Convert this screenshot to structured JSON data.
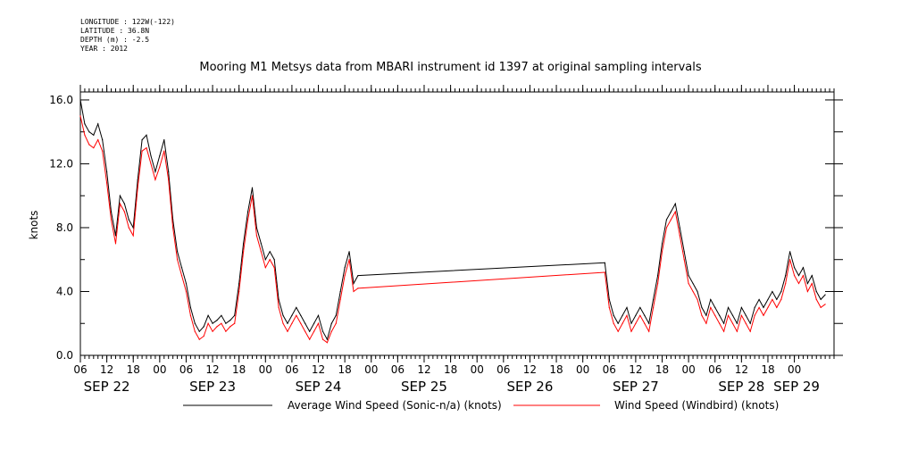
{
  "header": {
    "longitude": "LONGITUDE : 122W(-122)",
    "latitude": "LATITUDE : 36.8N",
    "depth": "DEPTH (m) : -2.5",
    "year": "YEAR : 2012"
  },
  "chart_data": {
    "type": "line",
    "title": "Mooring M1 Metsys data from MBARI instrument id 1397 at original sampling intervals",
    "ylabel": "knots",
    "xlabel": "",
    "ylim": [
      0,
      16.5
    ],
    "y_ticks": [
      "0.0",
      "4.0",
      "8.0",
      "12.0",
      "16.0"
    ],
    "x_range_hours": [
      0,
      171
    ],
    "x_hour_ticks": [
      "06",
      "12",
      "18",
      "00",
      "06",
      "12",
      "18",
      "00",
      "06",
      "12",
      "18",
      "00",
      "06",
      "12",
      "18",
      "00",
      "06",
      "12",
      "18",
      "00",
      "06",
      "12",
      "18",
      "00",
      "06",
      "12",
      "18",
      "00"
    ],
    "date_labels": [
      "SEP 22",
      "SEP 23",
      "SEP 24",
      "SEP 25",
      "SEP 26",
      "SEP 27",
      "SEP 28",
      "SEP 29"
    ],
    "grid": false,
    "legend_position": "bottom",
    "series": [
      {
        "name": "Average Wind Speed (Sonic-n/a) (knots)",
        "color": "#000000",
        "x": [
          0,
          1,
          2,
          3,
          4,
          5,
          6,
          7,
          8,
          9,
          10,
          11,
          12,
          13,
          14,
          15,
          16,
          17,
          18,
          19,
          20,
          21,
          22,
          23,
          24,
          25,
          26,
          27,
          28,
          29,
          30,
          31,
          32,
          33,
          34,
          35,
          36,
          37,
          38,
          39,
          40,
          41,
          42,
          43,
          44,
          45,
          46,
          47,
          48,
          49,
          50,
          51,
          52,
          53,
          54,
          55,
          56,
          57,
          58,
          59,
          60,
          61,
          62,
          63,
          119,
          120,
          121,
          122,
          123,
          124,
          125,
          126,
          127,
          128,
          129,
          130,
          131,
          132,
          133,
          134,
          135,
          136,
          137,
          138,
          139,
          140,
          141,
          142,
          143,
          144,
          145,
          146,
          147,
          148,
          149,
          150,
          151,
          152,
          153,
          154,
          155,
          156,
          157,
          158,
          159,
          160,
          161,
          162,
          163,
          164,
          165,
          166,
          167,
          168,
          169
        ],
        "y": [
          16.0,
          14.5,
          14.0,
          13.8,
          14.5,
          13.5,
          11.5,
          9.0,
          7.5,
          10.0,
          9.5,
          8.5,
          8.0,
          11.0,
          13.5,
          13.8,
          12.5,
          11.5,
          12.5,
          13.5,
          11.5,
          8.5,
          6.5,
          5.5,
          4.5,
          3.0,
          2.0,
          1.5,
          1.8,
          2.5,
          2.0,
          2.2,
          2.5,
          2.0,
          2.2,
          2.5,
          4.5,
          7.0,
          9.0,
          10.5,
          8.0,
          7.0,
          6.0,
          6.5,
          6.0,
          3.5,
          2.5,
          2.0,
          2.5,
          3.0,
          2.5,
          2.0,
          1.5,
          2.0,
          2.5,
          1.5,
          1.0,
          2.0,
          2.5,
          4.0,
          5.5,
          6.5,
          4.5,
          5.0,
          5.8,
          3.5,
          2.5,
          2.0,
          2.5,
          3.0,
          2.0,
          2.5,
          3.0,
          2.5,
          2.0,
          3.5,
          5.0,
          7.0,
          8.5,
          9.0,
          9.5,
          8.0,
          6.5,
          5.0,
          4.5,
          4.0,
          3.0,
          2.5,
          3.5,
          3.0,
          2.5,
          2.0,
          3.0,
          2.5,
          2.0,
          3.0,
          2.5,
          2.0,
          3.0,
          3.5,
          3.0,
          3.5,
          4.0,
          3.5,
          4.0,
          5.0,
          6.5,
          5.5,
          5.0,
          5.5,
          4.5,
          5.0,
          4.0,
          3.5,
          3.8
        ]
      },
      {
        "name": "Wind Speed (Windbird) (knots)",
        "color": "#ff0000",
        "x": [
          0,
          1,
          2,
          3,
          4,
          5,
          6,
          7,
          8,
          9,
          10,
          11,
          12,
          13,
          14,
          15,
          16,
          17,
          18,
          19,
          20,
          21,
          22,
          23,
          24,
          25,
          26,
          27,
          28,
          29,
          30,
          31,
          32,
          33,
          34,
          35,
          36,
          37,
          38,
          39,
          40,
          41,
          42,
          43,
          44,
          45,
          46,
          47,
          48,
          49,
          50,
          51,
          52,
          53,
          54,
          55,
          56,
          57,
          58,
          59,
          60,
          61,
          62,
          63,
          119,
          120,
          121,
          122,
          123,
          124,
          125,
          126,
          127,
          128,
          129,
          130,
          131,
          132,
          133,
          134,
          135,
          136,
          137,
          138,
          139,
          140,
          141,
          142,
          143,
          144,
          145,
          146,
          147,
          148,
          149,
          150,
          151,
          152,
          153,
          154,
          155,
          156,
          157,
          158,
          159,
          160,
          161,
          162,
          163,
          164,
          165,
          166,
          167,
          168,
          169
        ],
        "y": [
          15.0,
          13.8,
          13.2,
          13.0,
          13.5,
          12.8,
          10.8,
          8.5,
          7.0,
          9.5,
          9.0,
          8.0,
          7.5,
          10.5,
          12.8,
          13.0,
          12.0,
          11.0,
          11.8,
          12.8,
          11.0,
          8.0,
          6.0,
          5.0,
          4.0,
          2.5,
          1.5,
          1.0,
          1.2,
          2.0,
          1.5,
          1.8,
          2.0,
          1.5,
          1.8,
          2.0,
          4.0,
          6.5,
          8.5,
          10.0,
          7.5,
          6.5,
          5.5,
          6.0,
          5.5,
          3.0,
          2.0,
          1.5,
          2.0,
          2.5,
          2.0,
          1.5,
          1.0,
          1.5,
          2.0,
          1.0,
          0.8,
          1.5,
          2.0,
          3.5,
          5.0,
          6.0,
          4.0,
          4.2,
          5.2,
          3.0,
          2.0,
          1.5,
          2.0,
          2.5,
          1.5,
          2.0,
          2.5,
          2.0,
          1.5,
          3.0,
          4.5,
          6.5,
          8.0,
          8.5,
          9.0,
          7.5,
          6.0,
          4.5,
          4.0,
          3.5,
          2.5,
          2.0,
          3.0,
          2.5,
          2.0,
          1.5,
          2.5,
          2.0,
          1.5,
          2.5,
          2.0,
          1.5,
          2.5,
          3.0,
          2.5,
          3.0,
          3.5,
          3.0,
          3.5,
          4.5,
          6.0,
          5.0,
          4.5,
          5.0,
          4.0,
          4.5,
          3.5,
          3.0,
          3.2
        ]
      }
    ]
  }
}
